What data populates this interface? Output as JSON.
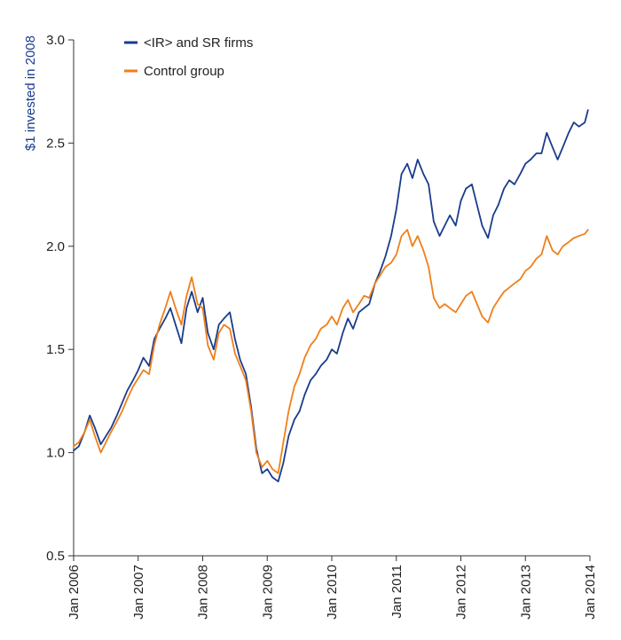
{
  "chart_data": {
    "type": "line",
    "title": "",
    "xlabel": "",
    "ylabel": "$1 invested in 2008",
    "xlim": [
      2006.0,
      2014.0
    ],
    "ylim": [
      0.5,
      3.0
    ],
    "grid": false,
    "legend_position": "top-left",
    "x_tick_labels": [
      "Jan 2006",
      "Jan 2007",
      "Jan 2008",
      "Jan 2009",
      "Jan 2010",
      "Jan 2011",
      "Jan 2012",
      "Jan 2013",
      "Jan 2014"
    ],
    "x_ticks": [
      2006,
      2007,
      2008,
      2009,
      2010,
      2011,
      2012,
      2013,
      2014
    ],
    "y_tick_labels": [
      "0.5",
      "1.0",
      "1.5",
      "2.0",
      "2.5",
      "3.0"
    ],
    "y_ticks": [
      0.5,
      1.0,
      1.5,
      2.0,
      2.5,
      3.0
    ],
    "series": [
      {
        "name": "<IR> and SR firms",
        "color": "#1a3c8c",
        "points": [
          [
            2006.0,
            1.01
          ],
          [
            2006.08,
            1.03
          ],
          [
            2006.17,
            1.1
          ],
          [
            2006.25,
            1.18
          ],
          [
            2006.33,
            1.12
          ],
          [
            2006.42,
            1.04
          ],
          [
            2006.5,
            1.08
          ],
          [
            2006.58,
            1.12
          ],
          [
            2006.67,
            1.18
          ],
          [
            2006.75,
            1.24
          ],
          [
            2006.83,
            1.3
          ],
          [
            2006.92,
            1.35
          ],
          [
            2007.0,
            1.4
          ],
          [
            2007.08,
            1.46
          ],
          [
            2007.17,
            1.42
          ],
          [
            2007.25,
            1.55
          ],
          [
            2007.33,
            1.6
          ],
          [
            2007.42,
            1.65
          ],
          [
            2007.5,
            1.7
          ],
          [
            2007.58,
            1.62
          ],
          [
            2007.67,
            1.53
          ],
          [
            2007.75,
            1.7
          ],
          [
            2007.83,
            1.78
          ],
          [
            2007.92,
            1.68
          ],
          [
            2008.0,
            1.75
          ],
          [
            2008.08,
            1.58
          ],
          [
            2008.17,
            1.5
          ],
          [
            2008.25,
            1.62
          ],
          [
            2008.33,
            1.65
          ],
          [
            2008.42,
            1.68
          ],
          [
            2008.5,
            1.55
          ],
          [
            2008.58,
            1.45
          ],
          [
            2008.67,
            1.38
          ],
          [
            2008.75,
            1.22
          ],
          [
            2008.83,
            1.02
          ],
          [
            2008.92,
            0.9
          ],
          [
            2009.0,
            0.92
          ],
          [
            2009.08,
            0.88
          ],
          [
            2009.17,
            0.86
          ],
          [
            2009.25,
            0.95
          ],
          [
            2009.33,
            1.08
          ],
          [
            2009.42,
            1.16
          ],
          [
            2009.5,
            1.2
          ],
          [
            2009.58,
            1.28
          ],
          [
            2009.67,
            1.35
          ],
          [
            2009.75,
            1.38
          ],
          [
            2009.83,
            1.42
          ],
          [
            2009.92,
            1.45
          ],
          [
            2010.0,
            1.5
          ],
          [
            2010.08,
            1.48
          ],
          [
            2010.17,
            1.58
          ],
          [
            2010.25,
            1.65
          ],
          [
            2010.33,
            1.6
          ],
          [
            2010.42,
            1.68
          ],
          [
            2010.5,
            1.7
          ],
          [
            2010.58,
            1.72
          ],
          [
            2010.67,
            1.82
          ],
          [
            2010.75,
            1.88
          ],
          [
            2010.83,
            1.95
          ],
          [
            2010.92,
            2.05
          ],
          [
            2011.0,
            2.18
          ],
          [
            2011.08,
            2.35
          ],
          [
            2011.17,
            2.4
          ],
          [
            2011.25,
            2.33
          ],
          [
            2011.33,
            2.42
          ],
          [
            2011.42,
            2.35
          ],
          [
            2011.5,
            2.3
          ],
          [
            2011.58,
            2.12
          ],
          [
            2011.67,
            2.05
          ],
          [
            2011.75,
            2.1
          ],
          [
            2011.83,
            2.15
          ],
          [
            2011.92,
            2.1
          ],
          [
            2012.0,
            2.22
          ],
          [
            2012.08,
            2.28
          ],
          [
            2012.17,
            2.3
          ],
          [
            2012.25,
            2.2
          ],
          [
            2012.33,
            2.1
          ],
          [
            2012.42,
            2.04
          ],
          [
            2012.5,
            2.15
          ],
          [
            2012.58,
            2.2
          ],
          [
            2012.67,
            2.28
          ],
          [
            2012.75,
            2.32
          ],
          [
            2012.83,
            2.3
          ],
          [
            2012.92,
            2.35
          ],
          [
            2013.0,
            2.4
          ],
          [
            2013.08,
            2.42
          ],
          [
            2013.17,
            2.45
          ],
          [
            2013.25,
            2.45
          ],
          [
            2013.33,
            2.55
          ],
          [
            2013.42,
            2.48
          ],
          [
            2013.5,
            2.42
          ],
          [
            2013.58,
            2.48
          ],
          [
            2013.67,
            2.55
          ],
          [
            2013.75,
            2.6
          ],
          [
            2013.83,
            2.58
          ],
          [
            2013.92,
            2.6
          ],
          [
            2013.97,
            2.66
          ]
        ]
      },
      {
        "name": "Control group",
        "color": "#f07f1a",
        "points": [
          [
            2006.0,
            1.03
          ],
          [
            2006.08,
            1.05
          ],
          [
            2006.17,
            1.1
          ],
          [
            2006.25,
            1.16
          ],
          [
            2006.33,
            1.08
          ],
          [
            2006.42,
            1.0
          ],
          [
            2006.5,
            1.05
          ],
          [
            2006.58,
            1.1
          ],
          [
            2006.67,
            1.15
          ],
          [
            2006.75,
            1.2
          ],
          [
            2006.83,
            1.26
          ],
          [
            2006.92,
            1.32
          ],
          [
            2007.0,
            1.36
          ],
          [
            2007.08,
            1.4
          ],
          [
            2007.17,
            1.38
          ],
          [
            2007.25,
            1.52
          ],
          [
            2007.33,
            1.62
          ],
          [
            2007.42,
            1.7
          ],
          [
            2007.5,
            1.78
          ],
          [
            2007.58,
            1.7
          ],
          [
            2007.67,
            1.62
          ],
          [
            2007.75,
            1.76
          ],
          [
            2007.83,
            1.85
          ],
          [
            2007.92,
            1.72
          ],
          [
            2008.0,
            1.7
          ],
          [
            2008.08,
            1.52
          ],
          [
            2008.17,
            1.45
          ],
          [
            2008.25,
            1.58
          ],
          [
            2008.33,
            1.62
          ],
          [
            2008.42,
            1.6
          ],
          [
            2008.5,
            1.48
          ],
          [
            2008.58,
            1.42
          ],
          [
            2008.67,
            1.35
          ],
          [
            2008.75,
            1.2
          ],
          [
            2008.83,
            1.0
          ],
          [
            2008.92,
            0.93
          ],
          [
            2009.0,
            0.96
          ],
          [
            2009.08,
            0.92
          ],
          [
            2009.17,
            0.9
          ],
          [
            2009.25,
            1.05
          ],
          [
            2009.33,
            1.2
          ],
          [
            2009.42,
            1.32
          ],
          [
            2009.5,
            1.38
          ],
          [
            2009.58,
            1.46
          ],
          [
            2009.67,
            1.52
          ],
          [
            2009.75,
            1.55
          ],
          [
            2009.83,
            1.6
          ],
          [
            2009.92,
            1.62
          ],
          [
            2010.0,
            1.66
          ],
          [
            2010.08,
            1.62
          ],
          [
            2010.17,
            1.7
          ],
          [
            2010.25,
            1.74
          ],
          [
            2010.33,
            1.68
          ],
          [
            2010.42,
            1.72
          ],
          [
            2010.5,
            1.76
          ],
          [
            2010.58,
            1.75
          ],
          [
            2010.67,
            1.82
          ],
          [
            2010.75,
            1.86
          ],
          [
            2010.83,
            1.9
          ],
          [
            2010.92,
            1.92
          ],
          [
            2011.0,
            1.96
          ],
          [
            2011.08,
            2.05
          ],
          [
            2011.17,
            2.08
          ],
          [
            2011.25,
            2.0
          ],
          [
            2011.33,
            2.05
          ],
          [
            2011.42,
            1.98
          ],
          [
            2011.5,
            1.9
          ],
          [
            2011.58,
            1.75
          ],
          [
            2011.67,
            1.7
          ],
          [
            2011.75,
            1.72
          ],
          [
            2011.83,
            1.7
          ],
          [
            2011.92,
            1.68
          ],
          [
            2012.0,
            1.72
          ],
          [
            2012.08,
            1.76
          ],
          [
            2012.17,
            1.78
          ],
          [
            2012.25,
            1.72
          ],
          [
            2012.33,
            1.66
          ],
          [
            2012.42,
            1.63
          ],
          [
            2012.5,
            1.7
          ],
          [
            2012.58,
            1.74
          ],
          [
            2012.67,
            1.78
          ],
          [
            2012.75,
            1.8
          ],
          [
            2012.83,
            1.82
          ],
          [
            2012.92,
            1.84
          ],
          [
            2013.0,
            1.88
          ],
          [
            2013.08,
            1.9
          ],
          [
            2013.17,
            1.94
          ],
          [
            2013.25,
            1.96
          ],
          [
            2013.33,
            2.05
          ],
          [
            2013.42,
            1.98
          ],
          [
            2013.5,
            1.96
          ],
          [
            2013.58,
            2.0
          ],
          [
            2013.67,
            2.02
          ],
          [
            2013.75,
            2.04
          ],
          [
            2013.83,
            2.05
          ],
          [
            2013.92,
            2.06
          ],
          [
            2013.97,
            2.08
          ]
        ]
      }
    ]
  }
}
